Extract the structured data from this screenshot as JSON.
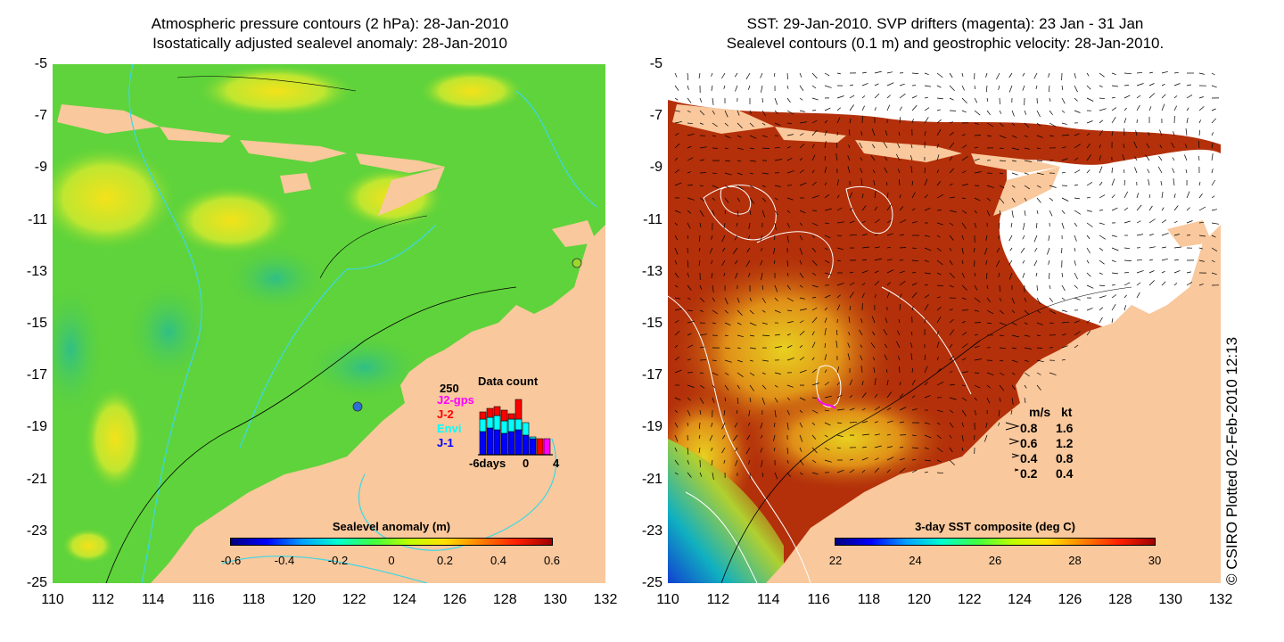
{
  "left": {
    "title_line1": "Atmospheric pressure contours (2 hPa): 28-Jan-2010",
    "title_line2": "Isostatically adjusted sealevel anomaly: 28-Jan-2010",
    "colorbar_title": "Sealevel anomaly (m)",
    "colorbar_ticks": [
      "-0.6",
      "-0.4",
      "-0.2",
      "0",
      "0.2",
      "0.4",
      "0.6"
    ],
    "inset": {
      "title": "Data count",
      "ymax_label": "250",
      "legend": [
        {
          "label": "J2-gps",
          "color": "#ff00ff"
        },
        {
          "label": "J-2",
          "color": "#ff0000"
        },
        {
          "label": "Envi",
          "color": "#00ffff"
        },
        {
          "label": "J-1",
          "color": "#0000ff"
        }
      ],
      "x_labels": [
        "-6days",
        "0",
        "4"
      ]
    }
  },
  "right": {
    "title_line1": "SST: 29-Jan-2010. SVP drifters (magenta): 23 Jan - 31 Jan",
    "title_line2": "Sealevel contours (0.1 m) and geostrophic velocity: 28-Jan-2010.",
    "colorbar_title": "3-day SST composite (deg C)",
    "colorbar_ticks": [
      "22",
      "24",
      "26",
      "28",
      "30"
    ],
    "speed_legend": {
      "header_ms": "m/s",
      "header_kt": "kt",
      "rows": [
        {
          "ms": "0.8",
          "kt": "1.6"
        },
        {
          "ms": "0.6",
          "kt": "1.2"
        },
        {
          "ms": "0.4",
          "kt": "0.8"
        },
        {
          "ms": "0.2",
          "kt": "0.4"
        }
      ]
    }
  },
  "axes": {
    "y_labels": [
      "-5",
      "-7",
      "-9",
      "-11",
      "-13",
      "-15",
      "-17",
      "-19",
      "-21",
      "-23",
      "-25"
    ],
    "x_labels": [
      "110",
      "112",
      "114",
      "116",
      "118",
      "120",
      "122",
      "124",
      "126",
      "128",
      "130",
      "132"
    ]
  },
  "credit": "© CSIRO Plotted 02-Feb-2010 12:13",
  "colors": {
    "land": "#f9c89c",
    "sla_base": "#5fd33b",
    "sst_base": "#b3300a",
    "contour_cyan": "#3cd7e6",
    "cloud": "#ffffff"
  }
}
